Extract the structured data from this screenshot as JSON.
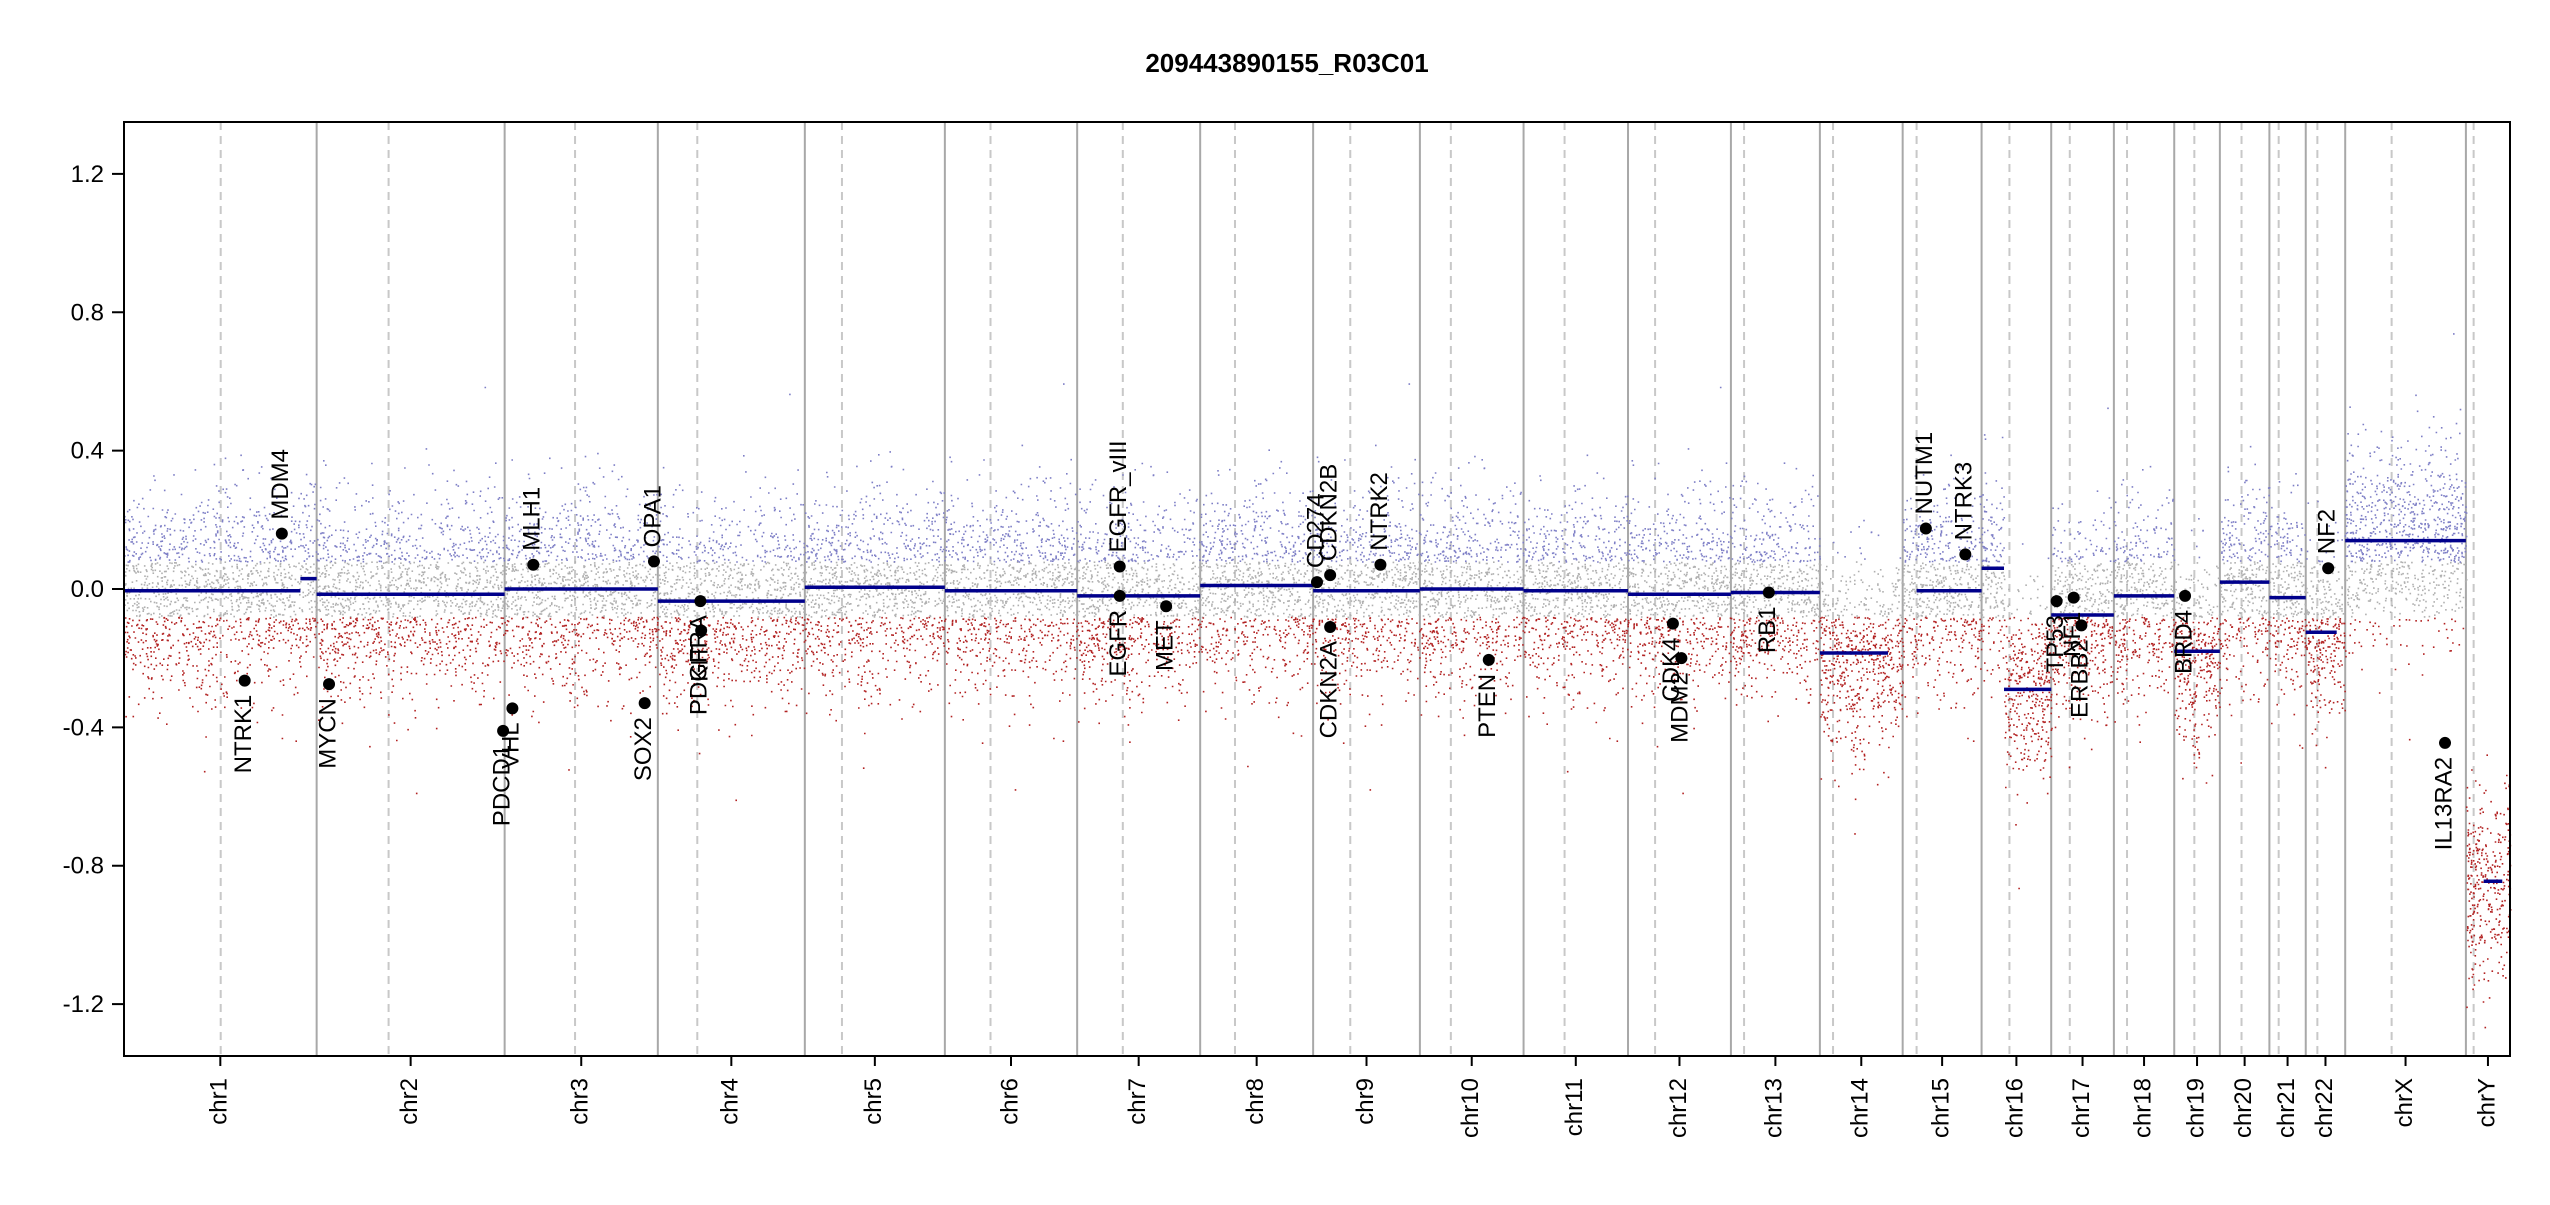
{
  "chart_data": {
    "type": "scatter",
    "title": "209443890155_R03C01",
    "xlabel": "",
    "ylabel": "",
    "ylim": [
      -1.35,
      1.35
    ],
    "y_ticks": [
      -1.2,
      -0.8,
      -0.4,
      0.0,
      0.4,
      0.8,
      1.2
    ],
    "y_tick_labels": [
      "-1.2",
      "-0.8",
      "-0.4",
      "0.0",
      "0.4",
      "0.8",
      "1.2"
    ],
    "x_units": "Mb (genome-wide)",
    "grid": false,
    "colors": {
      "segment": "#00008b",
      "gain_points": "#7e7fc6",
      "loss_points": "#b22222",
      "neutral_points": "#b0b0b0",
      "chrom_border": "#a8a8a8",
      "centromere": "#c8c8c8",
      "gene_marker": "#000000"
    },
    "chromosomes": [
      {
        "name": "chr1",
        "start": 0,
        "end": 249,
        "cen": 125
      },
      {
        "name": "chr2",
        "start": 249,
        "end": 492,
        "cen": 342
      },
      {
        "name": "chr3",
        "start": 492,
        "end": 690,
        "cen": 583
      },
      {
        "name": "chr4",
        "start": 690,
        "end": 880,
        "cen": 741
      },
      {
        "name": "chr5",
        "start": 880,
        "end": 1061,
        "cen": 928
      },
      {
        "name": "chr6",
        "start": 1061,
        "end": 1232,
        "cen": 1120
      },
      {
        "name": "chr7",
        "start": 1232,
        "end": 1391,
        "cen": 1291
      },
      {
        "name": "chr8",
        "start": 1391,
        "end": 1537,
        "cen": 1436
      },
      {
        "name": "chr9",
        "start": 1537,
        "end": 1675,
        "cen": 1585
      },
      {
        "name": "chr10",
        "start": 1675,
        "end": 1809,
        "cen": 1715
      },
      {
        "name": "chr11",
        "start": 1809,
        "end": 1944,
        "cen": 1862
      },
      {
        "name": "chr12",
        "start": 1944,
        "end": 2077,
        "cen": 1979
      },
      {
        "name": "chr13",
        "start": 2077,
        "end": 2192,
        "cen": 2094
      },
      {
        "name": "chr14",
        "start": 2192,
        "end": 2299,
        "cen": 2209
      },
      {
        "name": "chr15",
        "start": 2299,
        "end": 2401,
        "cen": 2317
      },
      {
        "name": "chr16",
        "start": 2401,
        "end": 2491,
        "cen": 2437
      },
      {
        "name": "chr17",
        "start": 2491,
        "end": 2572,
        "cen": 2515
      },
      {
        "name": "chr18",
        "start": 2572,
        "end": 2650,
        "cen": 2589
      },
      {
        "name": "chr19",
        "start": 2650,
        "end": 2709,
        "cen": 2676
      },
      {
        "name": "chr20",
        "start": 2709,
        "end": 2773,
        "cen": 2737
      },
      {
        "name": "chr21",
        "start": 2773,
        "end": 2820,
        "cen": 2785
      },
      {
        "name": "chr22",
        "start": 2820,
        "end": 2871,
        "cen": 2835
      },
      {
        "name": "chrX",
        "start": 2871,
        "end": 3027,
        "cen": 2931
      },
      {
        "name": "chrY",
        "start": 3027,
        "end": 3084,
        "cen": 3037
      }
    ],
    "segments": [
      {
        "x0": 0,
        "x1": 228,
        "y": -0.005
      },
      {
        "x0": 228,
        "x1": 249,
        "y": 0.03
      },
      {
        "x0": 249,
        "x1": 492,
        "y": -0.015
      },
      {
        "x0": 492,
        "x1": 690,
        "y": 0.0
      },
      {
        "x0": 690,
        "x1": 880,
        "y": -0.035
      },
      {
        "x0": 880,
        "x1": 1061,
        "y": 0.005
      },
      {
        "x0": 1061,
        "x1": 1232,
        "y": -0.005
      },
      {
        "x0": 1232,
        "x1": 1391,
        "y": -0.02
      },
      {
        "x0": 1391,
        "x1": 1537,
        "y": 0.01
      },
      {
        "x0": 1537,
        "x1": 1675,
        "y": -0.005
      },
      {
        "x0": 1675,
        "x1": 1809,
        "y": 0.0
      },
      {
        "x0": 1809,
        "x1": 1944,
        "y": -0.005
      },
      {
        "x0": 1944,
        "x1": 2077,
        "y": -0.015
      },
      {
        "x0": 2077,
        "x1": 2192,
        "y": -0.01
      },
      {
        "x0": 2192,
        "x1": 2280,
        "y": -0.185
      },
      {
        "x0": 2317,
        "x1": 2401,
        "y": -0.005
      },
      {
        "x0": 2401,
        "x1": 2430,
        "y": 0.06
      },
      {
        "x0": 2430,
        "x1": 2491,
        "y": -0.29
      },
      {
        "x0": 2491,
        "x1": 2572,
        "y": -0.075
      },
      {
        "x0": 2572,
        "x1": 2650,
        "y": -0.02
      },
      {
        "x0": 2650,
        "x1": 2709,
        "y": -0.18
      },
      {
        "x0": 2709,
        "x1": 2773,
        "y": 0.02
      },
      {
        "x0": 2773,
        "x1": 2820,
        "y": -0.025
      },
      {
        "x0": 2820,
        "x1": 2860,
        "y": -0.125
      },
      {
        "x0": 2871,
        "x1": 3027,
        "y": 0.14
      },
      {
        "x0": 3050,
        "x1": 3074,
        "y": -0.845
      }
    ],
    "genes": [
      {
        "name": "NTRK1",
        "x": 156,
        "y": -0.265,
        "label_side": "below"
      },
      {
        "name": "MDM4",
        "x": 204,
        "y": 0.16,
        "label_side": "above"
      },
      {
        "name": "MYCN",
        "x": 265,
        "y": -0.275,
        "label_side": "below"
      },
      {
        "name": "PDCD1",
        "x": 490,
        "y": -0.41,
        "label_side": "below"
      },
      {
        "name": "VHL",
        "x": 502,
        "y": -0.345,
        "label_side": "below"
      },
      {
        "name": "MLH1",
        "x": 529,
        "y": 0.07,
        "label_side": "above"
      },
      {
        "name": "SOX2",
        "x": 673,
        "y": -0.33,
        "label_side": "below"
      },
      {
        "name": "OPA1",
        "x": 685,
        "y": 0.08,
        "label_side": "above"
      },
      {
        "name": "PDGFRA",
        "x": 745,
        "y": -0.035,
        "label_side": "below"
      },
      {
        "name": "KIT",
        "x": 746,
        "y": -0.12,
        "label_side": "below"
      },
      {
        "name": "EGFR",
        "x": 1287,
        "y": -0.02,
        "label_side": "below"
      },
      {
        "name": "EGFR_vIII",
        "x": 1287,
        "y": 0.065,
        "label_side": "above"
      },
      {
        "name": "MET",
        "x": 1347,
        "y": -0.05,
        "label_side": "below"
      },
      {
        "name": "CD274",
        "x": 1542,
        "y": 0.02,
        "label_side": "above"
      },
      {
        "name": "CDKN2B",
        "x": 1559,
        "y": 0.04,
        "label_side": "above"
      },
      {
        "name": "CDKN2A",
        "x": 1559,
        "y": -0.11,
        "label_side": "below"
      },
      {
        "name": "NTRK2",
        "x": 1624,
        "y": 0.07,
        "label_side": "above"
      },
      {
        "name": "PTEN",
        "x": 1764,
        "y": -0.205,
        "label_side": "below"
      },
      {
        "name": "CDK4",
        "x": 2002,
        "y": -0.1,
        "label_side": "below"
      },
      {
        "name": "MDM2",
        "x": 2013,
        "y": -0.2,
        "label_side": "below"
      },
      {
        "name": "RB1",
        "x": 2126,
        "y": -0.01,
        "label_side": "below"
      },
      {
        "name": "NUTM1",
        "x": 2329,
        "y": 0.175,
        "label_side": "above"
      },
      {
        "name": "NTRK3",
        "x": 2380,
        "y": 0.1,
        "label_side": "above"
      },
      {
        "name": "TP53",
        "x": 2498,
        "y": -0.035,
        "label_side": "below"
      },
      {
        "name": "NF1",
        "x": 2520,
        "y": -0.025,
        "label_side": "below"
      },
      {
        "name": "ERBB2",
        "x": 2530,
        "y": -0.105,
        "label_side": "below"
      },
      {
        "name": "BRD4",
        "x": 2664,
        "y": -0.02,
        "label_side": "below"
      },
      {
        "name": "NF2",
        "x": 2849,
        "y": 0.06,
        "label_side": "above"
      },
      {
        "name": "IL13RA2",
        "x": 3000,
        "y": -0.445,
        "label_side": "below"
      }
    ]
  }
}
